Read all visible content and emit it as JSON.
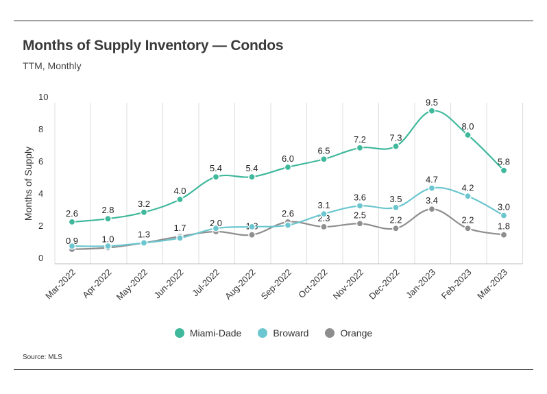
{
  "header": {
    "title": "Months of Supply Inventory — Condos",
    "subtitle": "TTM, Monthly"
  },
  "footer": {
    "source": "Source: MLS"
  },
  "colors": {
    "miami_dade": "#3fb89c",
    "broward": "#6cc6cf",
    "orange": "#8e8e8e"
  },
  "chart_data": {
    "type": "line",
    "title": "Months of Supply Inventory — Condos",
    "subtitle": "TTM, Monthly",
    "xlabel": "",
    "ylabel": "Months of Supply",
    "ylim": [
      0,
      10
    ],
    "yticks": [
      0,
      2,
      4,
      6,
      8,
      10
    ],
    "grid": "vertical",
    "legend_position": "bottom",
    "categories": [
      "Mar-2022",
      "Apr-2022",
      "May-2022",
      "Jun-2022",
      "Jul-2022",
      "Aug-2022",
      "Sep-2022",
      "Oct-2022",
      "Nov-2022",
      "Dec-2022",
      "Jan-2023",
      "Feb-2023",
      "Mar-2023"
    ],
    "series": [
      {
        "name": "Miami-Dade",
        "values": [
          2.6,
          2.8,
          3.2,
          4.0,
          5.4,
          5.4,
          6.0,
          6.5,
          7.2,
          7.3,
          9.5,
          8.0,
          5.8
        ],
        "labeled": true
      },
      {
        "name": "Broward",
        "values": [
          1.1,
          1.1,
          1.3,
          1.6,
          2.2,
          2.3,
          2.4,
          3.1,
          3.6,
          3.5,
          4.7,
          4.2,
          3.0
        ],
        "labels": [
          "",
          "",
          "",
          "",
          "",
          "",
          "",
          "3.1",
          "3.6",
          "3.5",
          "4.7",
          "4.2",
          "3.0"
        ]
      },
      {
        "name": "Orange",
        "values": [
          0.9,
          1.0,
          1.3,
          1.7,
          2.0,
          1.8,
          2.6,
          2.3,
          2.5,
          2.2,
          3.4,
          2.2,
          1.8
        ],
        "labeled": true
      }
    ]
  }
}
